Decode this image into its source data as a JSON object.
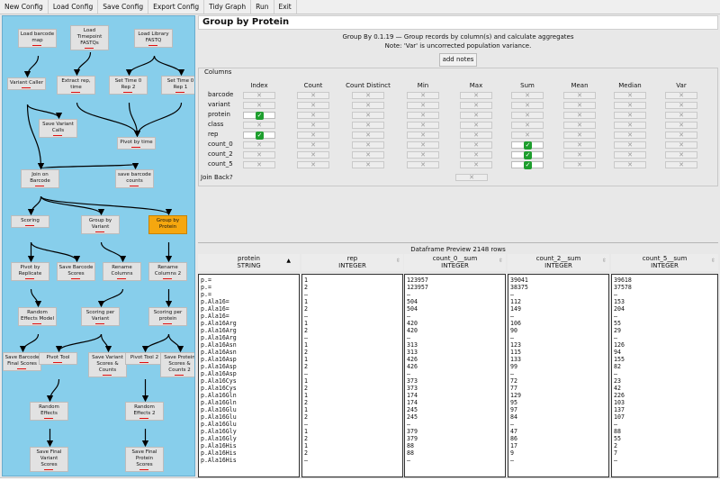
{
  "toolbar": {
    "buttons": [
      "New Config",
      "Load Config",
      "Save Config",
      "Export Config",
      "Tidy Graph",
      "Run",
      "Exit"
    ]
  },
  "graph": {
    "nodes": [
      {
        "label": "Load barcode map"
      },
      {
        "label": "Load Timepoint FASTQs"
      },
      {
        "label": "Load Library FASTQ"
      },
      {
        "label": "Variant Caller"
      },
      {
        "label": "Extract rep, time"
      },
      {
        "label": "Set Time 0 Rep 2"
      },
      {
        "label": "Set Time 0 Rep 1"
      },
      {
        "label": "Save Variant Calls"
      },
      {
        "label": "Pivot by time"
      },
      {
        "label": "Join on Barcode"
      },
      {
        "label": "save barcode counts"
      },
      {
        "label": "Scoring"
      },
      {
        "label": "Group by Variant"
      },
      {
        "label": "Group by Protein"
      },
      {
        "label": "Pivot by Replicate"
      },
      {
        "label": "Save Barcode Scores"
      },
      {
        "label": "Rename Columns"
      },
      {
        "label": "Rename Columns 2"
      },
      {
        "label": "Random Effects Model"
      },
      {
        "label": "Scoring per Variant"
      },
      {
        "label": "Scoring per protein"
      },
      {
        "label": "Save Barcode Final Scores"
      },
      {
        "label": "Pivot Tool"
      },
      {
        "label": "Save Variant Scores & Counts"
      },
      {
        "label": "Pivot Tool 2"
      },
      {
        "label": "Save Protein Scores & Counts 2"
      },
      {
        "label": "Random Effects"
      },
      {
        "label": "Random Effects 2"
      },
      {
        "label": "Save Final Variant Scores"
      },
      {
        "label": "Save Final Protein Scores"
      }
    ]
  },
  "panel": {
    "title": "Group by Protein",
    "desc_line1": "Group By 0.1.19 — Group records by column(s) and calculate aggregates",
    "desc_line2": "Note: 'Var' is uncorrected population variance.",
    "add_notes": "add notes",
    "columns_legend": "Columns",
    "headers": [
      "Index",
      "Count",
      "Count Distinct",
      "Min",
      "Max",
      "Sum",
      "Mean",
      "Median",
      "Var"
    ],
    "rows": [
      {
        "name": "barcode",
        "checked": []
      },
      {
        "name": "variant",
        "checked": []
      },
      {
        "name": "protein",
        "checked": [
          0
        ]
      },
      {
        "name": "class",
        "checked": []
      },
      {
        "name": "rep",
        "checked": [
          0
        ]
      },
      {
        "name": "count_0",
        "checked": [
          5
        ]
      },
      {
        "name": "count_2",
        "checked": [
          5
        ]
      },
      {
        "name": "count_5",
        "checked": [
          5
        ]
      }
    ],
    "join_back": "Join Back?",
    "unchecked_glyph": "✕",
    "checked_glyph": "✓"
  },
  "preview": {
    "title": "Dataframe Preview 2148 rows",
    "columns": [
      {
        "name": "protein",
        "type": "STRING",
        "values": [
          "p.=",
          "p.=",
          "p.=",
          "p.Ala16=",
          "p.Ala16=",
          "p.Ala16=",
          "p.Ala16Arg",
          "p.Ala16Arg",
          "p.Ala16Arg",
          "p.Ala16Asn",
          "p.Ala16Asn",
          "p.Ala16Asp",
          "p.Ala16Asp",
          "p.Ala16Asp",
          "p.Ala16Cys",
          "p.Ala16Cys",
          "p.Ala16Gln",
          "p.Ala16Gln",
          "p.Ala16Glu",
          "p.Ala16Glu",
          "p.Ala16Glu",
          "p.Ala16Gly",
          "p.Ala16Gly",
          "p.Ala16His",
          "p.Ala16His",
          "p.Ala16His"
        ]
      },
      {
        "name": "rep",
        "type": "INTEGER",
        "values": [
          "1",
          "2",
          "—",
          "1",
          "2",
          "—",
          "1",
          "2",
          "—",
          "1",
          "2",
          "1",
          "2",
          "—",
          "1",
          "2",
          "1",
          "2",
          "1",
          "2",
          "—",
          "1",
          "2",
          "1",
          "2",
          "—"
        ]
      },
      {
        "name": "count_0__sum",
        "type": "INTEGER",
        "values": [
          "123957",
          "123957",
          "—",
          "504",
          "504",
          "—",
          "420",
          "420",
          "—",
          "313",
          "313",
          "426",
          "426",
          "—",
          "373",
          "373",
          "174",
          "174",
          "245",
          "245",
          "—",
          "379",
          "379",
          "88",
          "88",
          "—"
        ]
      },
      {
        "name": "count_2__sum",
        "type": "INTEGER",
        "values": [
          "39041",
          "38375",
          "—",
          "112",
          "149",
          "—",
          "106",
          "90",
          "—",
          "123",
          "115",
          "133",
          "99",
          "—",
          "72",
          "77",
          "129",
          "95",
          "97",
          "84",
          "—",
          "47",
          "86",
          "17",
          "9",
          "—"
        ]
      },
      {
        "name": "count_5__sum",
        "type": "INTEGER",
        "values": [
          "39618",
          "37578",
          "—",
          "153",
          "204",
          "—",
          "55",
          "29",
          "—",
          "126",
          "94",
          "155",
          "82",
          "—",
          "23",
          "42",
          "226",
          "103",
          "137",
          "107",
          "—",
          "88",
          "55",
          "2",
          "7",
          "—"
        ]
      }
    ]
  }
}
